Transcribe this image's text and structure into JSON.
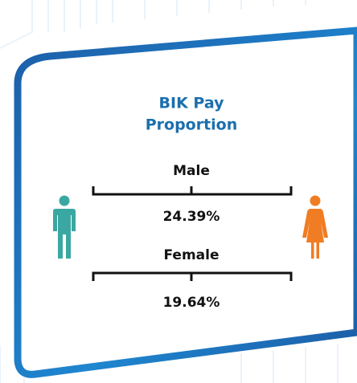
{
  "card": {
    "title": [
      "BIK Pay",
      "Proportion"
    ],
    "groups": [
      {
        "label": "Male",
        "value": "24.39%"
      },
      {
        "label": "Female",
        "value": "19.64%"
      }
    ]
  }
}
